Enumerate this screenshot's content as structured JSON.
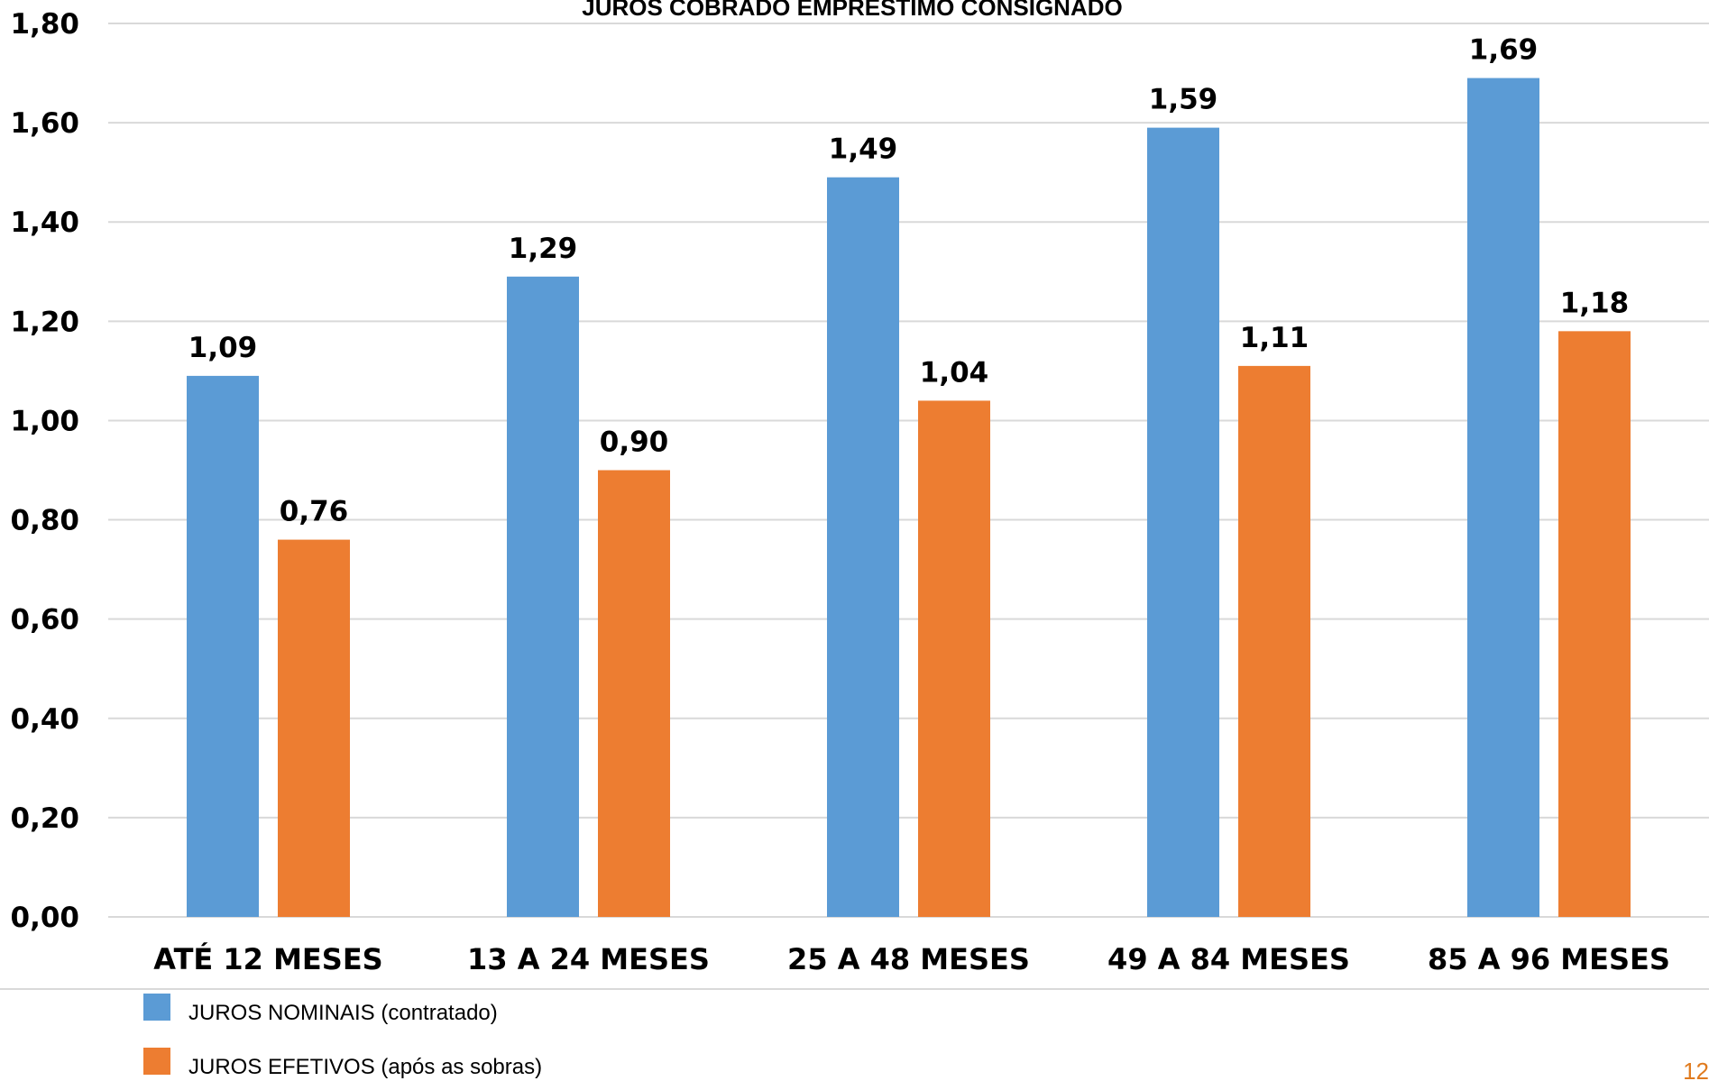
{
  "chart_data": {
    "type": "bar",
    "title": "JUROS COBRADO EMPRÉSTIMO CONSIGNADO",
    "categories": [
      "ATÉ 12 MESES",
      "13 A 24 MESES",
      "25 A 48 MESES",
      "49 A 84 MESES",
      "85 A 96 MESES"
    ],
    "series": [
      {
        "name": "JUROS NOMINAIS (contratado)",
        "color": "#5B9BD5",
        "values": [
          1.09,
          1.29,
          1.49,
          1.59,
          1.69
        ],
        "labels": [
          "1,09",
          "1,29",
          "1,49",
          "1,59",
          "1,69"
        ]
      },
      {
        "name": "JUROS EFETIVOS (após as sobras)",
        "color": "#ED7D31",
        "values": [
          0.76,
          0.9,
          1.04,
          1.11,
          1.18
        ],
        "labels": [
          "0,76",
          "0,90",
          "1,04",
          "1,11",
          "1,18"
        ]
      }
    ],
    "ylim": [
      0,
      1.8
    ],
    "yticks": [
      0,
      0.2,
      0.4,
      0.6,
      0.8,
      1.0,
      1.2,
      1.4,
      1.6,
      1.8
    ],
    "ytick_labels": [
      "0,00",
      "0,20",
      "0,40",
      "0,60",
      "0,80",
      "1,00",
      "1,20",
      "1,40",
      "1,60",
      "1,80"
    ],
    "grid": true,
    "legend_position": "bottom-left"
  },
  "page_number": "12"
}
